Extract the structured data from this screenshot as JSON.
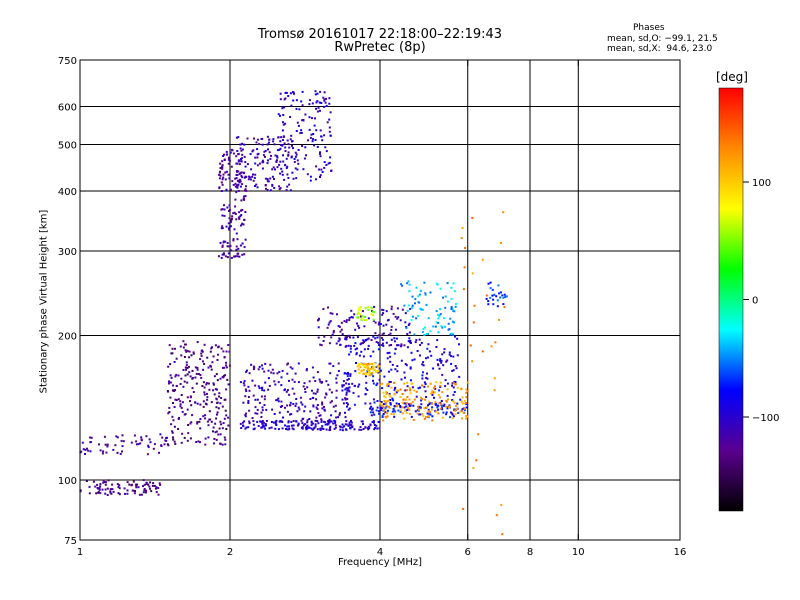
{
  "header": {
    "title_line1": "Tromsø 20161017 22:18:00–22:19:43",
    "title_line2": "RwPretec (8p)"
  },
  "phases_box": {
    "heading": "Phases",
    "line_o": "mean, sd,O: −99.1, 21.5",
    "line_x": "mean, sd,X:  94.6, 23.0"
  },
  "colorbar": {
    "unit_label": "[deg]",
    "tick_labels": [
      "100",
      "0",
      "−100"
    ],
    "tick_values": [
      100,
      0,
      -100
    ],
    "range": [
      -180,
      180
    ],
    "colors": [
      "#000000",
      "#5a0090",
      "#0000ff",
      "#00ffff",
      "#00ff00",
      "#ffff00",
      "#ff8800",
      "#ff0000"
    ]
  },
  "chart_data": {
    "type": "scatter",
    "xlabel": "Frequency [MHz]",
    "ylabel": "Stationary phase Virtual Height [km]",
    "xscale": "log",
    "yscale": "log",
    "xlim": [
      1,
      16
    ],
    "ylim": [
      75,
      750
    ],
    "x_ticks": [
      1,
      2,
      4,
      6,
      8,
      10,
      16
    ],
    "x_tick_labels": [
      "1",
      "2",
      "4",
      "6",
      "8",
      "10",
      "16"
    ],
    "y_ticks": [
      75,
      100,
      200,
      300,
      400,
      500,
      600,
      750
    ],
    "y_tick_labels": [
      "75",
      "100",
      "200",
      "300",
      "400",
      "500",
      "600",
      "750"
    ],
    "grid_x": [
      2,
      4,
      6,
      8,
      10
    ],
    "grid_y": [
      100,
      200,
      300,
      400,
      500,
      600
    ],
    "color_variable": "phase [deg]",
    "clusters": [
      {
        "f_range": [
          1.0,
          1.45
        ],
        "h_range": [
          93,
          100
        ],
        "phase": -130,
        "count": 90
      },
      {
        "f_range": [
          1.0,
          1.5
        ],
        "h_range": [
          113,
          125
        ],
        "phase": -120,
        "count": 60
      },
      {
        "f_range": [
          1.5,
          2.0
        ],
        "h_range": [
          118,
          195
        ],
        "phase": -130,
        "count": 260
      },
      {
        "f_range": [
          1.9,
          2.15
        ],
        "h_range": [
          290,
          490
        ],
        "phase": -120,
        "count": 170
      },
      {
        "f_range": [
          2.05,
          2.7
        ],
        "h_range": [
          400,
          520
        ],
        "phase": -110,
        "count": 160
      },
      {
        "f_range": [
          2.5,
          3.2
        ],
        "h_range": [
          420,
          650
        ],
        "phase": -100,
        "count": 140
      },
      {
        "f_range": [
          2.1,
          4.0
        ],
        "h_range": [
          127,
          133
        ],
        "phase": -100,
        "count": 180
      },
      {
        "f_range": [
          2.1,
          3.5
        ],
        "h_range": [
          133,
          175
        ],
        "phase": -110,
        "count": 220
      },
      {
        "f_range": [
          3.0,
          4.6
        ],
        "h_range": [
          190,
          230
        ],
        "phase": -115,
        "count": 120
      },
      {
        "f_range": [
          3.4,
          5.8
        ],
        "h_range": [
          140,
          200
        ],
        "phase": -90,
        "count": 260
      },
      {
        "f_range": [
          3.8,
          6.0
        ],
        "h_range": [
          135,
          145
        ],
        "phase": -80,
        "count": 90
      },
      {
        "f_range": [
          4.0,
          6.0
        ],
        "h_range": [
          133,
          160
        ],
        "phase": 120,
        "count": 160
      },
      {
        "f_range": [
          3.6,
          4.0
        ],
        "h_range": [
          165,
          175
        ],
        "phase": 100,
        "count": 60
      },
      {
        "f_range": [
          3.6,
          3.9
        ],
        "h_range": [
          215,
          230
        ],
        "phase": 60,
        "count": 30
      },
      {
        "f_range": [
          4.4,
          5.7
        ],
        "h_range": [
          200,
          260
        ],
        "phase": -40,
        "count": 90
      },
      {
        "f_range": [
          6.5,
          7.2
        ],
        "h_range": [
          230,
          260
        ],
        "phase": -70,
        "count": 25
      },
      {
        "f_range": [
          5.8,
          7.2
        ],
        "h_range": [
          75,
          380
        ],
        "phase": 130,
        "count": 30
      }
    ]
  }
}
